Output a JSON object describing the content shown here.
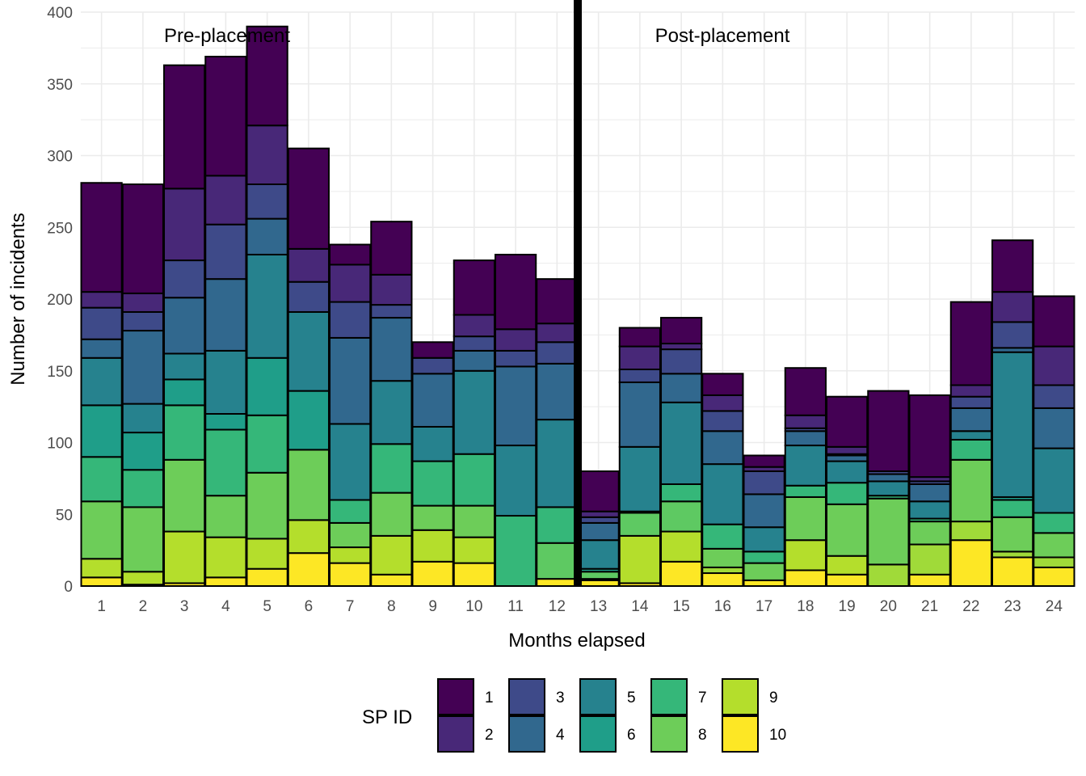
{
  "chart_data": {
    "type": "bar",
    "stacked": true,
    "xlabel": "Months elapsed",
    "ylabel": "Number of incidents",
    "ylim": [
      0,
      400
    ],
    "yticks": [
      0,
      50,
      100,
      150,
      200,
      250,
      300,
      350,
      400
    ],
    "grid": true,
    "legend": {
      "title": "SP ID",
      "position": "bottom"
    },
    "annotations": [
      "Pre-placement",
      "Post-placement"
    ],
    "divider_after_month": 12,
    "categories": [
      "1",
      "2",
      "3",
      "4",
      "5",
      "6",
      "7",
      "8",
      "9",
      "10",
      "11",
      "12",
      "13",
      "14",
      "15",
      "16",
      "17",
      "18",
      "19",
      "20",
      "21",
      "22",
      "23",
      "24"
    ],
    "series": [
      {
        "name": "1",
        "color": "#440154",
        "values": [
          76,
          76,
          86,
          83,
          69,
          70,
          14,
          37,
          11,
          38,
          52,
          31,
          28,
          13,
          18,
          15,
          8,
          33,
          35,
          56,
          57,
          58,
          36,
          35
        ]
      },
      {
        "name": "2",
        "color": "#482878",
        "values": [
          11,
          13,
          50,
          34,
          41,
          23,
          26,
          21,
          0,
          15,
          15,
          13,
          4,
          16,
          4,
          11,
          3,
          9,
          5,
          0,
          3,
          8,
          21,
          27
        ]
      },
      {
        "name": "3",
        "color": "#3E4A89",
        "values": [
          22,
          13,
          26,
          38,
          24,
          21,
          25,
          9,
          11,
          10,
          11,
          15,
          4,
          9,
          17,
          14,
          16,
          2,
          1,
          2,
          2,
          8,
          18,
          16
        ]
      },
      {
        "name": "4",
        "color": "#31688E",
        "values": [
          13,
          51,
          39,
          50,
          25,
          0,
          60,
          44,
          37,
          14,
          55,
          39,
          12,
          45,
          20,
          23,
          23,
          10,
          4,
          5,
          12,
          16,
          3,
          28
        ]
      },
      {
        "name": "5",
        "color": "#26828E",
        "values": [
          33,
          20,
          18,
          44,
          72,
          55,
          53,
          44,
          24,
          58,
          49,
          61,
          20,
          45,
          57,
          42,
          17,
          28,
          15,
          10,
          12,
          6,
          101,
          45
        ]
      },
      {
        "name": "6",
        "color": "#1F9E89",
        "values": [
          36,
          26,
          18,
          11,
          40,
          41,
          0,
          0,
          0,
          0,
          0,
          0,
          2,
          1,
          0,
          0,
          0,
          0,
          0,
          0,
          0,
          0,
          2,
          0
        ]
      },
      {
        "name": "7",
        "color": "#35B779",
        "values": [
          31,
          26,
          38,
          46,
          40,
          0,
          16,
          34,
          31,
          36,
          49,
          25,
          0,
          0,
          12,
          17,
          8,
          8,
          15,
          2,
          2,
          14,
          12,
          14
        ]
      },
      {
        "name": "8",
        "color": "#6DCD59",
        "values": [
          40,
          45,
          50,
          29,
          46,
          49,
          17,
          30,
          17,
          22,
          0,
          0,
          0,
          0,
          0,
          0,
          0,
          0,
          0,
          0,
          0,
          0,
          0,
          0
        ]
      },
      {
        "name": "8",
        "color": "#5EC962",
        "values": [
          0,
          0,
          0,
          0,
          0,
          0,
          0,
          0,
          0,
          0,
          0,
          25,
          5,
          16,
          21,
          0,
          0,
          0,
          0,
          0,
          0,
          0,
          0,
          0
        ]
      },
      {
        "name": "8",
        "color": "#6DCD59",
        "values": [
          0,
          0,
          0,
          0,
          0,
          0,
          0,
          0,
          0,
          0,
          0,
          0,
          0,
          0,
          0,
          13,
          12,
          30,
          36,
          46,
          16,
          43,
          24,
          17
        ]
      },
      {
        "name": "9",
        "color": "#B4DE2C",
        "values": [
          13,
          9,
          36,
          28,
          21,
          23,
          11,
          27,
          22,
          18,
          0,
          0,
          1,
          33,
          21,
          0,
          0,
          21,
          13,
          0,
          0,
          0,
          0,
          0
        ]
      },
      {
        "name": "9",
        "color": "#A0DA39",
        "values": [
          0,
          0,
          0,
          0,
          0,
          0,
          0,
          0,
          0,
          0,
          0,
          0,
          0,
          0,
          0,
          4,
          0,
          0,
          0,
          15,
          21,
          13,
          4,
          7
        ]
      },
      {
        "name": "10",
        "color": "#FDE725",
        "values": [
          6,
          1,
          2,
          6,
          12,
          23,
          16,
          8,
          17,
          16,
          0,
          5,
          4,
          2,
          17,
          9,
          4,
          11,
          8,
          0,
          8,
          32,
          20,
          13
        ]
      }
    ]
  }
}
